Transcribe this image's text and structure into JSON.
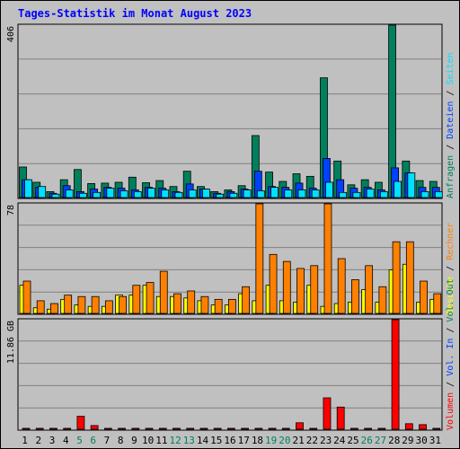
{
  "title": "Tages-Statistik im Monat August 2023",
  "colors": {
    "background": "#c0c0c0",
    "title": "#0000ff",
    "anfragen": "#00805c",
    "dateien": "#0040ff",
    "seiten": "#00e0ff",
    "besuche": "#ffff00",
    "rechner": "#ff8000",
    "volumen": "#ff0000",
    "weekend_label": "#008060",
    "weekday_label": "#000000"
  },
  "legend": {
    "top": [
      {
        "text": "Anfragen",
        "color": "#00805c"
      },
      {
        "text": "Dateien",
        "color": "#0040ff"
      },
      {
        "text": "Seiten",
        "color": "#00e0ff"
      }
    ],
    "middle": [
      {
        "text": "Besuche",
        "color": "#ffff00"
      },
      {
        "text": "Rechner",
        "color": "#ff8000"
      }
    ],
    "bottom": [
      {
        "text": "Volumen",
        "color": "#ff0000"
      },
      {
        "text": "Vol. In",
        "color": "#0040ff"
      },
      {
        "text": "Vol. Out",
        "color": "#00805c"
      }
    ],
    "separator": " / "
  },
  "chart_data": [
    {
      "type": "bar",
      "max_label": "406",
      "ylim": [
        0,
        406
      ],
      "categories": [
        "1",
        "2",
        "3",
        "4",
        "5",
        "6",
        "7",
        "8",
        "9",
        "10",
        "11",
        "12",
        "13",
        "14",
        "15",
        "16",
        "17",
        "18",
        "19",
        "20",
        "21",
        "22",
        "23",
        "24",
        "25",
        "26",
        "27",
        "28",
        "29",
        "30",
        "31"
      ],
      "weekend_days": [
        "5",
        "6",
        "12",
        "13",
        "19",
        "20",
        "26",
        "27"
      ],
      "series": [
        {
          "name": "Anfragen",
          "values": [
            72,
            36,
            14,
            42,
            66,
            33,
            34,
            36,
            48,
            35,
            40,
            26,
            62,
            26,
            14,
            18,
            28,
            146,
            60,
            38,
            56,
            50,
            282,
            86,
            30,
            42,
            36,
            406,
            86,
            40,
            38
          ]
        },
        {
          "name": "Dateien",
          "values": [
            42,
            24,
            10,
            28,
            14,
            20,
            24,
            22,
            18,
            24,
            22,
            14,
            32,
            20,
            10,
            14,
            20,
            62,
            26,
            24,
            34,
            22,
            92,
            42,
            22,
            24,
            18,
            70,
            58,
            24,
            24
          ]
        },
        {
          "name": "Seiten",
          "values": [
            42,
            26,
            8,
            18,
            10,
            12,
            22,
            16,
            14,
            22,
            18,
            12,
            18,
            20,
            8,
            10,
            18,
            16,
            24,
            18,
            18,
            18,
            36,
            12,
            12,
            20,
            14,
            38,
            58,
            14,
            14
          ]
        }
      ]
    },
    {
      "type": "bar",
      "max_label": "78",
      "ylim": [
        0,
        78
      ],
      "categories": [
        "1",
        "2",
        "3",
        "4",
        "5",
        "6",
        "7",
        "8",
        "9",
        "10",
        "11",
        "12",
        "13",
        "14",
        "15",
        "16",
        "17",
        "18",
        "19",
        "20",
        "21",
        "22",
        "23",
        "24",
        "25",
        "26",
        "27",
        "28",
        "29",
        "30",
        "31"
      ],
      "series": [
        {
          "name": "Besuche",
          "values": [
            20,
            4,
            3,
            10,
            6,
            5,
            5,
            13,
            13,
            20,
            12,
            12,
            11,
            9,
            6,
            6,
            14,
            9,
            20,
            9,
            8,
            20,
            5,
            7,
            8,
            17,
            8,
            31,
            35,
            8,
            10
          ]
        },
        {
          "name": "Rechner",
          "values": [
            23,
            9,
            7,
            13,
            12,
            12,
            9,
            12,
            20,
            22,
            30,
            14,
            16,
            12,
            10,
            10,
            19,
            78,
            42,
            37,
            32,
            34,
            78,
            39,
            24,
            34,
            19,
            51,
            51,
            23,
            14
          ]
        }
      ]
    },
    {
      "type": "bar",
      "max_label": "11.86 GB",
      "ylim": [
        0,
        11.86
      ],
      "categories": [
        "1",
        "2",
        "3",
        "4",
        "5",
        "6",
        "7",
        "8",
        "9",
        "10",
        "11",
        "12",
        "13",
        "14",
        "15",
        "16",
        "17",
        "18",
        "19",
        "20",
        "21",
        "22",
        "23",
        "24",
        "25",
        "26",
        "27",
        "28",
        "29",
        "30",
        "31"
      ],
      "series": [
        {
          "name": "Volumen",
          "values": [
            0.1,
            0.1,
            0.1,
            0.1,
            1.4,
            0.4,
            0.1,
            0.1,
            0.1,
            0.1,
            0.1,
            0.1,
            0.1,
            0.1,
            0.1,
            0.1,
            0.1,
            0.1,
            0.1,
            0.1,
            0.7,
            0.1,
            3.4,
            2.4,
            0.1,
            0.1,
            0.1,
            11.86,
            0.6,
            0.5,
            0.1
          ]
        }
      ]
    }
  ]
}
